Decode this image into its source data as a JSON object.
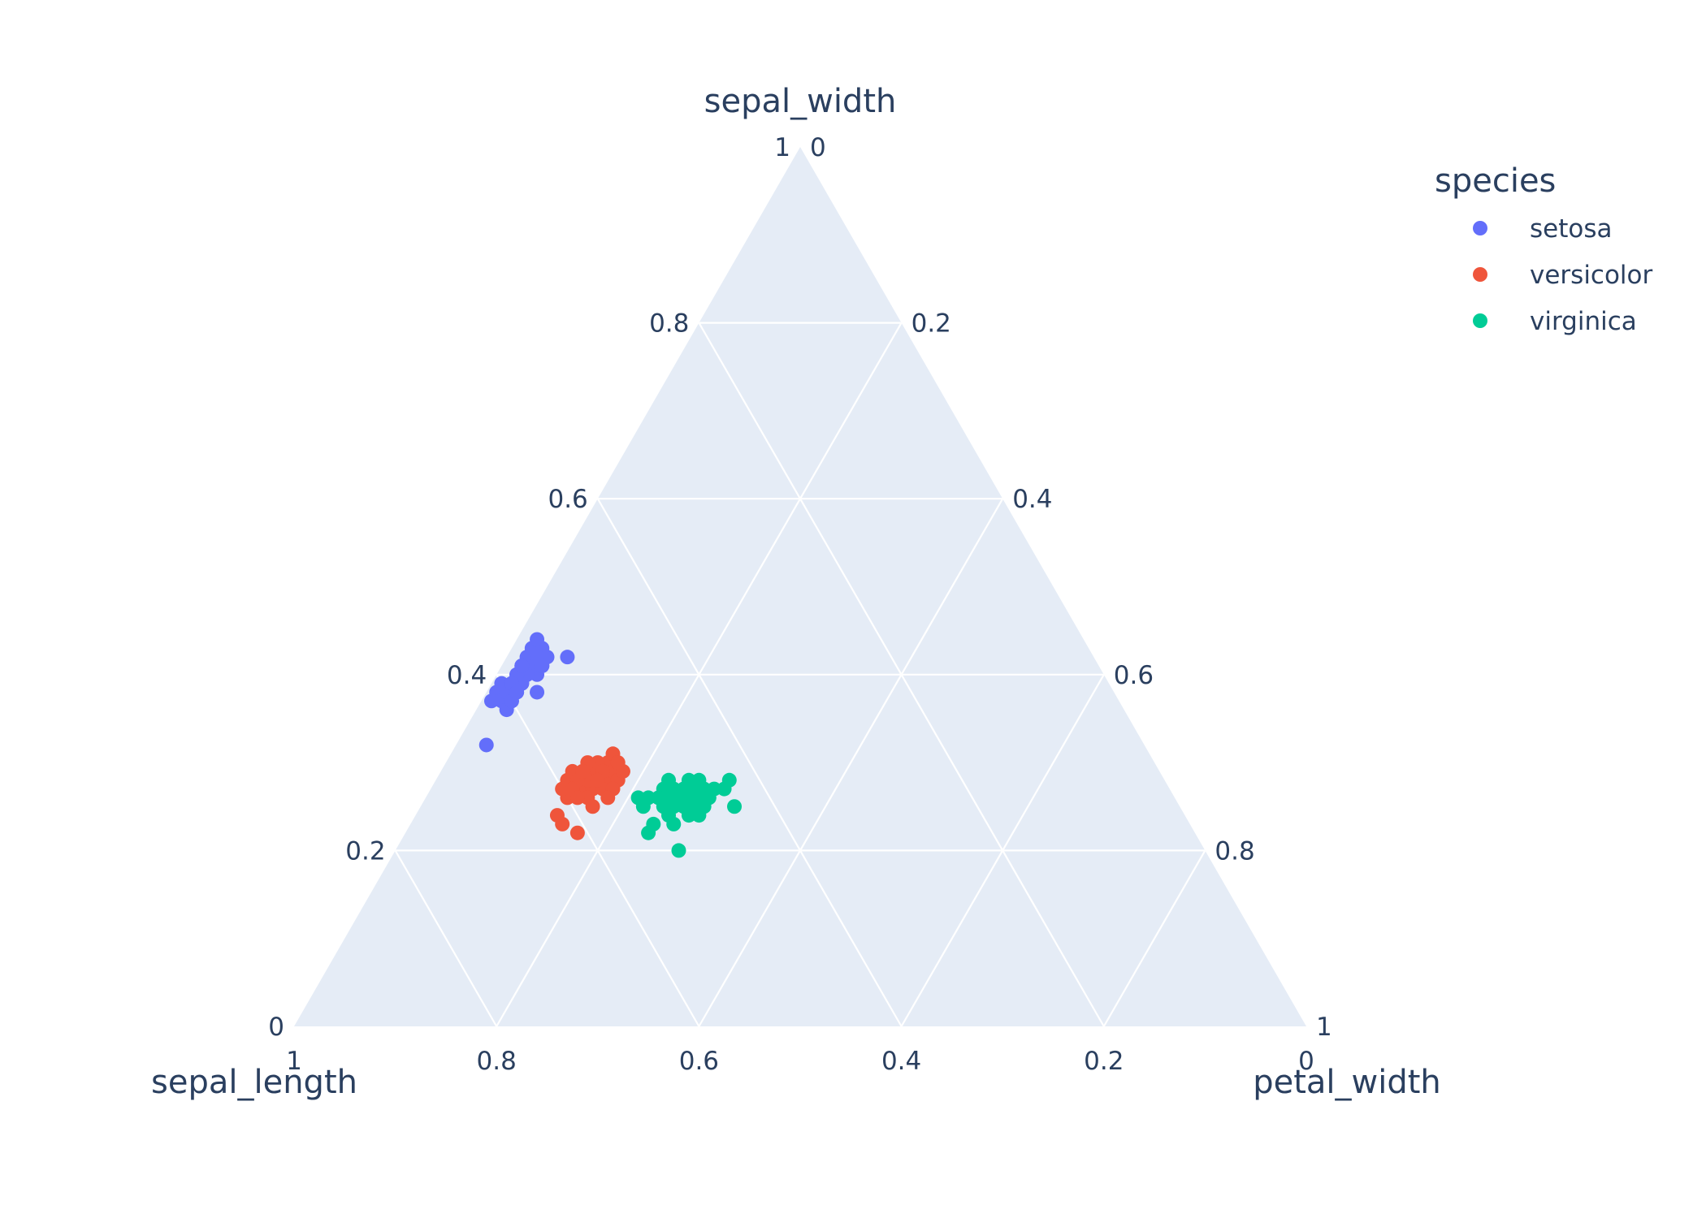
{
  "chart_data": {
    "type": "scatter",
    "subtype": "ternary",
    "title": "",
    "axes": {
      "a": {
        "title": "sepal_width",
        "range": [
          0,
          1
        ],
        "ticks": [
          "0",
          "0.2",
          "0.4",
          "0.6",
          "0.8",
          "1"
        ]
      },
      "b": {
        "title": "sepal_length",
        "range": [
          0,
          1
        ],
        "ticks": [
          "0",
          "0.2",
          "0.4",
          "0.6",
          "0.8",
          "1"
        ]
      },
      "c": {
        "title": "petal_width",
        "range": [
          0,
          1
        ],
        "ticks": [
          "0",
          "0.2",
          "0.4",
          "0.6",
          "0.8",
          "1"
        ]
      }
    },
    "grid": true,
    "legend": {
      "title": "species",
      "position": "top-right"
    },
    "series": [
      {
        "name": "setosa",
        "color": "#636efa",
        "points": [
          [
            0.42,
            0.55,
            0.03
          ],
          [
            0.4,
            0.57,
            0.03
          ],
          [
            0.41,
            0.56,
            0.03
          ],
          [
            0.41,
            0.57,
            0.02
          ],
          [
            0.43,
            0.54,
            0.03
          ],
          [
            0.42,
            0.52,
            0.06
          ],
          [
            0.4,
            0.58,
            0.02
          ],
          [
            0.41,
            0.57,
            0.02
          ],
          [
            0.39,
            0.6,
            0.01
          ],
          [
            0.38,
            0.61,
            0.01
          ],
          [
            0.4,
            0.56,
            0.04
          ],
          [
            0.39,
            0.58,
            0.03
          ],
          [
            0.38,
            0.59,
            0.03
          ],
          [
            0.37,
            0.62,
            0.01
          ],
          [
            0.37,
            0.61,
            0.02
          ],
          [
            0.41,
            0.56,
            0.03
          ],
          [
            0.42,
            0.56,
            0.02
          ],
          [
            0.43,
            0.55,
            0.02
          ],
          [
            0.41,
            0.55,
            0.04
          ],
          [
            0.36,
            0.61,
            0.03
          ],
          [
            0.38,
            0.57,
            0.05
          ],
          [
            0.32,
            0.65,
            0.03
          ],
          [
            0.4,
            0.58,
            0.02
          ],
          [
            0.39,
            0.59,
            0.02
          ],
          [
            0.41,
            0.57,
            0.02
          ],
          [
            0.44,
            0.54,
            0.02
          ],
          [
            0.4,
            0.57,
            0.03
          ],
          [
            0.37,
            0.6,
            0.03
          ],
          [
            0.42,
            0.54,
            0.04
          ],
          [
            0.39,
            0.58,
            0.03
          ],
          [
            0.38,
            0.6,
            0.02
          ],
          [
            0.41,
            0.55,
            0.04
          ],
          [
            0.4,
            0.57,
            0.03
          ],
          [
            0.42,
            0.55,
            0.03
          ],
          [
            0.39,
            0.59,
            0.02
          ],
          [
            0.4,
            0.58,
            0.02
          ],
          [
            0.37,
            0.6,
            0.03
          ],
          [
            0.41,
            0.57,
            0.02
          ],
          [
            0.39,
            0.59,
            0.02
          ],
          [
            0.38,
            0.59,
            0.03
          ]
        ]
      },
      {
        "name": "versicolor",
        "color": "#ef553b",
        "points": [
          [
            0.28,
            0.58,
            0.14
          ],
          [
            0.29,
            0.57,
            0.14
          ],
          [
            0.27,
            0.58,
            0.15
          ],
          [
            0.28,
            0.56,
            0.16
          ],
          [
            0.27,
            0.59,
            0.14
          ],
          [
            0.29,
            0.56,
            0.15
          ],
          [
            0.3,
            0.54,
            0.16
          ],
          [
            0.28,
            0.55,
            0.17
          ],
          [
            0.27,
            0.57,
            0.16
          ],
          [
            0.29,
            0.54,
            0.17
          ],
          [
            0.26,
            0.6,
            0.14
          ],
          [
            0.28,
            0.59,
            0.13
          ],
          [
            0.29,
            0.58,
            0.13
          ],
          [
            0.3,
            0.55,
            0.15
          ],
          [
            0.27,
            0.56,
            0.17
          ],
          [
            0.24,
            0.62,
            0.14
          ],
          [
            0.23,
            0.62,
            0.15
          ],
          [
            0.22,
            0.61,
            0.17
          ],
          [
            0.26,
            0.58,
            0.16
          ],
          [
            0.27,
            0.6,
            0.13
          ],
          [
            0.28,
            0.57,
            0.15
          ],
          [
            0.29,
            0.55,
            0.16
          ],
          [
            0.3,
            0.56,
            0.14
          ],
          [
            0.31,
            0.53,
            0.16
          ],
          [
            0.28,
            0.54,
            0.18
          ],
          [
            0.27,
            0.55,
            0.18
          ],
          [
            0.26,
            0.56,
            0.18
          ],
          [
            0.29,
            0.53,
            0.18
          ],
          [
            0.25,
            0.58,
            0.17
          ],
          [
            0.28,
            0.58,
            0.14
          ],
          [
            0.27,
            0.59,
            0.14
          ],
          [
            0.29,
            0.57,
            0.14
          ],
          [
            0.26,
            0.59,
            0.15
          ],
          [
            0.28,
            0.56,
            0.16
          ],
          [
            0.3,
            0.53,
            0.17
          ]
        ]
      },
      {
        "name": "virginica",
        "color": "#00cc96",
        "points": [
          [
            0.26,
            0.53,
            0.21
          ],
          [
            0.27,
            0.5,
            0.23
          ],
          [
            0.26,
            0.51,
            0.23
          ],
          [
            0.27,
            0.49,
            0.24
          ],
          [
            0.25,
            0.5,
            0.25
          ],
          [
            0.26,
            0.48,
            0.26
          ],
          [
            0.27,
            0.48,
            0.25
          ],
          [
            0.28,
            0.47,
            0.25
          ],
          [
            0.27,
            0.46,
            0.27
          ],
          [
            0.26,
            0.46,
            0.28
          ],
          [
            0.25,
            0.47,
            0.28
          ],
          [
            0.25,
            0.44,
            0.31
          ],
          [
            0.27,
            0.45,
            0.28
          ],
          [
            0.28,
            0.46,
            0.26
          ],
          [
            0.26,
            0.49,
            0.25
          ],
          [
            0.24,
            0.51,
            0.25
          ],
          [
            0.23,
            0.53,
            0.24
          ],
          [
            0.22,
            0.54,
            0.24
          ],
          [
            0.25,
            0.51,
            0.24
          ],
          [
            0.24,
            0.49,
            0.27
          ],
          [
            0.26,
            0.47,
            0.27
          ],
          [
            0.27,
            0.44,
            0.29
          ],
          [
            0.28,
            0.43,
            0.29
          ],
          [
            0.26,
            0.52,
            0.22
          ],
          [
            0.25,
            0.49,
            0.26
          ],
          [
            0.23,
            0.51,
            0.26
          ],
          [
            0.24,
            0.48,
            0.28
          ],
          [
            0.27,
            0.48,
            0.25
          ],
          [
            0.26,
            0.5,
            0.24
          ],
          [
            0.2,
            0.52,
            0.28
          ],
          [
            0.25,
            0.53,
            0.22
          ],
          [
            0.28,
            0.49,
            0.23
          ],
          [
            0.26,
            0.49,
            0.25
          ],
          [
            0.27,
            0.47,
            0.26
          ],
          [
            0.25,
            0.48,
            0.27
          ]
        ]
      }
    ]
  }
}
